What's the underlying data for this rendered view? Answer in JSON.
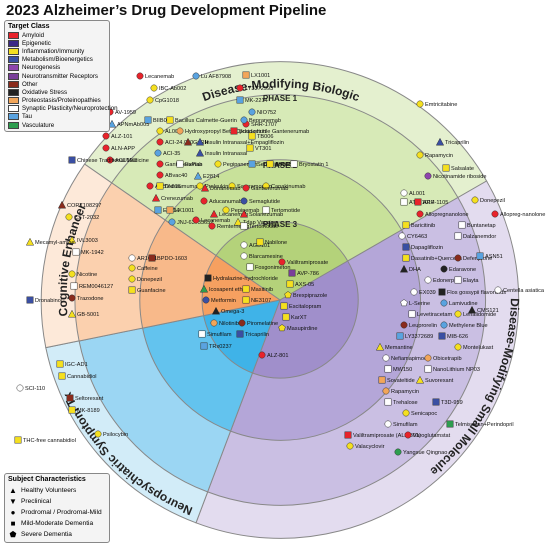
{
  "title": "2023 Alzheimer’s Drug Development Pipeline",
  "legend_target": {
    "title": "Target Class",
    "items": [
      {
        "label": "Amyloid",
        "color": "#e8232b"
      },
      {
        "label": "Epigenetic",
        "color": "#3c2a86"
      },
      {
        "label": "Inflammation/Immunity",
        "color": "#f5e020"
      },
      {
        "label": "Metabolism/Bioenergetics",
        "color": "#3a4fa3"
      },
      {
        "label": "Neurogenesis",
        "color": "#8e44ad"
      },
      {
        "label": "Neurotransmitter Receptors",
        "color": "#7a3f9a"
      },
      {
        "label": "Other",
        "color": "#8a2b1c"
      },
      {
        "label": "Oxidative Stress",
        "color": "#222222"
      },
      {
        "label": "Proteostasis/Proteinopathies",
        "color": "#f2a65a"
      },
      {
        "label": "Synaptic Plasticity/Neuroprotection",
        "color": "#ffffff"
      },
      {
        "label": "Tau",
        "color": "#5aa3e0"
      },
      {
        "label": "Vasculature",
        "color": "#2e9e4f"
      }
    ]
  },
  "legend_subject": {
    "title": "Subject Characteristics",
    "items": [
      {
        "label": "Healthy Volunteers",
        "glyph": "▲"
      },
      {
        "label": "Preclinical",
        "glyph": "▼"
      },
      {
        "label": "Prodromal / Prodromal-Mild",
        "glyph": "●"
      },
      {
        "label": "Mild-Moderate Dementia",
        "glyph": "■"
      },
      {
        "label": "Severe Dementia",
        "glyph": "⬟"
      }
    ]
  },
  "sectors": {
    "dmb": "Disease-Modifying Biologic",
    "dmsm": "Disease-Modifying Small Molecule",
    "neuro": "Neuropsychiatric Symptom Tx",
    "cog": "Cognitive Enhancer"
  },
  "phases": {
    "p1": "PHASE 1",
    "p2": "PHASE 2",
    "p3": "PHASE 3"
  },
  "drugs": [
    {
      "label": "Lecanemab",
      "shape": "circle",
      "color": "#e8232b"
    },
    {
      "label": "Lu AF87908",
      "shape": "circle",
      "color": "#5aa3e0"
    },
    {
      "label": "LX1001",
      "shape": "square",
      "color": "#f2a65a"
    },
    {
      "label": "IBC-Ab002",
      "shape": "circle",
      "color": "#f5e020"
    },
    {
      "label": "LY3372993",
      "shape": "circle",
      "color": "#e8232b"
    },
    {
      "label": "CpG1018",
      "shape": "circle",
      "color": "#f5e020"
    },
    {
      "label": "MK-2214",
      "shape": "square",
      "color": "#5aa3e0"
    },
    {
      "label": "AV-1959",
      "shape": "circle",
      "color": "#e8232b"
    },
    {
      "label": "NIO752",
      "shape": "circle",
      "color": "#5aa3e0"
    },
    {
      "label": "APNmAb005",
      "shape": "triangle",
      "color": "#5aa3e0"
    },
    {
      "label": "SHR-1707",
      "shape": "circle",
      "color": "#e8232b"
    },
    {
      "label": "ALZ-101",
      "shape": "circle",
      "color": "#e8232b"
    },
    {
      "label": "TB006",
      "shape": "square",
      "color": "#f5e020"
    },
    {
      "label": "ALN-APP",
      "shape": "circle",
      "color": "#e8232b"
    },
    {
      "label": "VT301",
      "shape": "square",
      "color": "#f5e020"
    },
    {
      "label": "ACU193",
      "shape": "circle",
      "color": "#e8232b"
    },
    {
      "label": "BIIB080",
      "shape": "square",
      "color": "#5aa3e0"
    },
    {
      "label": "Bacillus Calmette-Guerin",
      "shape": "square",
      "color": "#f5e020"
    },
    {
      "label": "Bepranemab",
      "shape": "circle",
      "color": "#5aa3e0"
    },
    {
      "label": "AL002",
      "shape": "circle",
      "color": "#f5e020"
    },
    {
      "label": "Hydroxypropyl Beta Cyclodextrin",
      "shape": "circle",
      "color": "#f2a65a"
    },
    {
      "label": "Brain-shuttle Gantenerumab",
      "shape": "square",
      "color": "#e8232b"
    },
    {
      "label": "ACI-24.060",
      "shape": "circle",
      "color": "#e8232b"
    },
    {
      "label": "GnRH",
      "shape": "triangle",
      "color": "#8a2b1c"
    },
    {
      "label": "Insulin Intranasal+Empagliflozin",
      "shape": "triangle",
      "color": "#3a4fa3"
    },
    {
      "label": "ACI-35",
      "shape": "circle",
      "color": "#5aa3e0"
    },
    {
      "label": "Insulin Intranasal",
      "shape": "triangle",
      "color": "#3a4fa3"
    },
    {
      "label": "Gantenerumab",
      "shape": "circle",
      "color": "#e8232b"
    },
    {
      "label": "ABvac40",
      "shape": "circle",
      "color": "#e8232b"
    },
    {
      "label": "ExPlas",
      "shape": "square",
      "color": "#ffffff"
    },
    {
      "label": "Pegipanermin",
      "shape": "circle",
      "color": "#f5e020"
    },
    {
      "label": "Semorinemab",
      "shape": "square",
      "color": "#5aa3e0"
    },
    {
      "label": "TB006",
      "shape": "square",
      "color": "#f5e020"
    },
    {
      "label": "Bryostatin 1",
      "shape": "square",
      "color": "#ffffff"
    },
    {
      "label": "ABBV-916",
      "shape": "circle",
      "color": "#e8232b"
    },
    {
      "label": "Daratumumab",
      "shape": "square",
      "color": "#f5e020"
    },
    {
      "label": "Proleukin",
      "shape": "circle",
      "color": "#f5e020"
    },
    {
      "label": "Sargramostim",
      "shape": "circle",
      "color": "#f5e020"
    },
    {
      "label": "Canakinumab",
      "shape": "circle",
      "color": "#f5e020"
    },
    {
      "label": "Crenezumab",
      "shape": "triangle",
      "color": "#e8232b"
    },
    {
      "label": "E2814",
      "shape": "square",
      "color": "#5aa3e0"
    },
    {
      "label": "LX1001",
      "shape": "square",
      "color": "#f2a65a"
    },
    {
      "label": "Pepinemab",
      "shape": "circle",
      "color": "#f5e020"
    },
    {
      "label": "Tertomotide",
      "shape": "square",
      "color": "#ffffff"
    },
    {
      "label": "JNJ-63733657",
      "shape": "circle",
      "color": "#5aa3e0"
    },
    {
      "label": "Lecanemab",
      "shape": "circle",
      "color": "#e8232b"
    },
    {
      "label": "Tdap Vaccine",
      "shape": "triangle",
      "color": "#f5e020"
    },
    {
      "label": "E2814",
      "shape": "triangle",
      "color": "#5aa3e0"
    },
    {
      "label": "Donanemab",
      "shape": "triangle",
      "color": "#e8232b"
    },
    {
      "label": "Gantenerumab",
      "shape": "circle",
      "color": "#e8232b"
    },
    {
      "label": "Aducanumab",
      "shape": "circle",
      "color": "#e8232b"
    },
    {
      "label": "Semaglutide",
      "shape": "circle",
      "color": "#3a4fa3"
    },
    {
      "label": "Lecanemab",
      "shape": "triangle",
      "color": "#e8232b"
    },
    {
      "label": "Solanezumab",
      "shape": "triangle",
      "color": "#e8232b"
    },
    {
      "label": "Remternetug",
      "shape": "circle",
      "color": "#e8232b"
    },
    {
      "label": "Tertomotide",
      "shape": "square",
      "color": "#ffffff"
    },
    {
      "label": "AR1001",
      "shape": "circle",
      "color": "#ffffff"
    },
    {
      "label": "BPDO-1603",
      "shape": "square",
      "color": "#8a2b1c"
    },
    {
      "label": "Caffeine",
      "shape": "circle",
      "color": "#f5e020"
    },
    {
      "label": "Donepezil",
      "shape": "circle",
      "color": "#f5e020"
    },
    {
      "label": "Guanfacine",
      "shape": "square",
      "color": "#f5e020"
    },
    {
      "label": "AGB101",
      "shape": "circle",
      "color": "#ffffff"
    },
    {
      "label": "Blarcamesine",
      "shape": "circle",
      "color": "#ffffff"
    },
    {
      "label": "Fosgonimeton",
      "shape": "square",
      "color": "#ffffff"
    },
    {
      "label": "Hydralazine-hydrochloride",
      "shape": "square",
      "color": "#222222"
    },
    {
      "label": "Icosapent ethyl",
      "shape": "triangle",
      "color": "#2e9e4f"
    },
    {
      "label": "Masitinib",
      "shape": "square",
      "color": "#f5e020"
    },
    {
      "label": "Metformin",
      "shape": "circle",
      "color": "#3a4fa3"
    },
    {
      "label": "NE3107",
      "shape": "square",
      "color": "#f5e020"
    },
    {
      "label": "Omega-3",
      "shape": "triangle",
      "color": "#222222"
    },
    {
      "label": "Nilotinib",
      "shape": "circle",
      "color": "#f2a65a"
    },
    {
      "label": "Piromelatine",
      "shape": "circle",
      "color": "#8a2b1c"
    },
    {
      "label": "Simufilam",
      "shape": "square",
      "color": "#ffffff"
    },
    {
      "label": "Tricaprilin",
      "shape": "square",
      "color": "#3a4fa3"
    },
    {
      "label": "TRx0237",
      "shape": "square",
      "color": "#5aa3e0"
    },
    {
      "label": "Valiltramiprosate",
      "shape": "circle",
      "color": "#e8232b"
    },
    {
      "label": "AVP-786",
      "shape": "square",
      "color": "#7a3f9a"
    },
    {
      "label": "AXS-05",
      "shape": "square",
      "color": "#f5e020"
    },
    {
      "label": "Brexpiprazole",
      "shape": "pentagon",
      "color": "#f5e020"
    },
    {
      "label": "Escitalopram",
      "shape": "square",
      "color": "#f5e020"
    },
    {
      "label": "KarXT",
      "shape": "square",
      "color": "#f5e020"
    },
    {
      "label": "Masupirdine",
      "shape": "pentagon",
      "color": "#f5e020"
    },
    {
      "label": "Nabilone",
      "shape": "square",
      "color": "#f5e020"
    },
    {
      "label": "ALZ-801",
      "shape": "circle",
      "color": "#e8232b"
    },
    {
      "label": "AL001",
      "shape": "circle",
      "color": "#ffffff"
    },
    {
      "label": "ATH-1017",
      "shape": "square",
      "color": "#ffffff"
    },
    {
      "label": "APH-1105",
      "shape": "square",
      "color": "#e8232b"
    },
    {
      "label": "Allopregnanolone",
      "shape": "circle",
      "color": "#e8232b"
    },
    {
      "label": "Baricitinib",
      "shape": "square",
      "color": "#f5e020"
    },
    {
      "label": "Buntanetap",
      "shape": "square",
      "color": "#ffffff"
    },
    {
      "label": "CY6463",
      "shape": "circle",
      "color": "#ffffff"
    },
    {
      "label": "Dalzanemdor",
      "shape": "square",
      "color": "#ffffff"
    },
    {
      "label": "Dapagliflozin",
      "shape": "square",
      "color": "#3a4fa3"
    },
    {
      "label": "Dasatinib+Quercetin",
      "shape": "square",
      "color": "#f5e020"
    },
    {
      "label": "Deferiprone",
      "shape": "circle",
      "color": "#8a2b1c"
    },
    {
      "label": "DHA",
      "shape": "triangle",
      "color": "#222222"
    },
    {
      "label": "Edaravone",
      "shape": "circle",
      "color": "#222222"
    },
    {
      "label": "Edonerpic",
      "shape": "circle",
      "color": "#ffffff"
    },
    {
      "label": "Elayta",
      "shape": "square",
      "color": "#ffffff"
    },
    {
      "label": "EX039",
      "shape": "circle",
      "color": "#ffffff"
    },
    {
      "label": "Flos gossypii flavonoids",
      "shape": "square",
      "color": "#222222"
    },
    {
      "label": "L-Serine",
      "shape": "pentagon",
      "color": "#ffffff"
    },
    {
      "label": "Lamivudine",
      "shape": "circle",
      "color": "#5aa3e0"
    },
    {
      "label": "Levetiracetam",
      "shape": "square",
      "color": "#ffffff"
    },
    {
      "label": "Lenalidomide",
      "shape": "circle",
      "color": "#f5e020"
    },
    {
      "label": "Leuprorelin",
      "shape": "circle",
      "color": "#8a2b1c"
    },
    {
      "label": "Methylene Blue",
      "shape": "circle",
      "color": "#5aa3e0"
    },
    {
      "label": "LY3372689",
      "shape": "square",
      "color": "#5aa3e0"
    },
    {
      "label": "MIB-626",
      "shape": "square",
      "color": "#3a4fa3"
    },
    {
      "label": "Memantine",
      "shape": "triangle",
      "color": "#f5e020"
    },
    {
      "label": "Montelukast",
      "shape": "circle",
      "color": "#f5e020"
    },
    {
      "label": "Nefiamapimod",
      "shape": "circle",
      "color": "#ffffff"
    },
    {
      "label": "Obicetrapib",
      "shape": "circle",
      "color": "#f2a65a"
    },
    {
      "label": "MW150",
      "shape": "square",
      "color": "#ffffff"
    },
    {
      "label": "NanoLithium NP03",
      "shape": "square",
      "color": "#ffffff"
    },
    {
      "label": "Sovateltide",
      "shape": "square",
      "color": "#f2a65a"
    },
    {
      "label": "Suvorexant",
      "shape": "triangle",
      "color": "#f5e020"
    },
    {
      "label": "Rapamycin",
      "shape": "circle",
      "color": "#f2a65a"
    },
    {
      "label": "Trehalose",
      "shape": "square",
      "color": "#ffffff"
    },
    {
      "label": "T3D-959",
      "shape": "square",
      "color": "#3a4fa3"
    },
    {
      "label": "Senicapoc",
      "shape": "circle",
      "color": "#f5e020"
    },
    {
      "label": "Simufilam",
      "shape": "circle",
      "color": "#ffffff"
    },
    {
      "label": "Telmisartan+Perindopril",
      "shape": "square",
      "color": "#2e9e4f"
    },
    {
      "label": "Valiltramiprosate (ALZ-801)",
      "shape": "square",
      "color": "#e8232b"
    },
    {
      "label": "Varoglutamstat",
      "shape": "circle",
      "color": "#e8232b"
    },
    {
      "label": "Valacyclovir",
      "shape": "circle",
      "color": "#f5e020"
    },
    {
      "label": "Yangxue Qingnao",
      "shape": "circle",
      "color": "#2e9e4f"
    },
    {
      "label": "Nicotinamide riboside",
      "shape": "circle",
      "color": "#8e44ad"
    },
    {
      "label": "Rapamycin",
      "shape": "circle",
      "color": "#f5e020"
    },
    {
      "label": "Salsalate",
      "shape": "square",
      "color": "#f5e020"
    },
    {
      "label": "Tricaprilin",
      "shape": "triangle",
      "color": "#3a4fa3"
    },
    {
      "label": "Emtricitabine",
      "shape": "circle",
      "color": "#f5e020"
    },
    {
      "label": "CMS121",
      "shape": "triangle",
      "color": "#222222"
    },
    {
      "label": "Centella asiatica",
      "shape": "circle",
      "color": "#ffffff"
    },
    {
      "label": "ASN51",
      "shape": "square",
      "color": "#5aa3e0"
    },
    {
      "label": "Allopreg-nanolone",
      "shape": "circle",
      "color": "#e8232b"
    },
    {
      "label": "Donepezil",
      "shape": "circle",
      "color": "#f5e020"
    },
    {
      "label": "Chinese Traditional Medicine",
      "shape": "square",
      "color": "#3a4fa3"
    },
    {
      "label": "CORT108297",
      "shape": "triangle",
      "color": "#8a2b1c"
    },
    {
      "label": "CST-2032",
      "shape": "circle",
      "color": "#f5e020"
    },
    {
      "label": "IVL3003",
      "shape": "triangle",
      "color": "#f5e020"
    },
    {
      "label": "MK-1942",
      "shape": "square",
      "color": "#ffffff"
    },
    {
      "label": "Nicotine",
      "shape": "circle",
      "color": "#f5e020"
    },
    {
      "label": "REM0046127",
      "shape": "square",
      "color": "#ffffff"
    },
    {
      "label": "Trazodone",
      "shape": "circle",
      "color": "#8a2b1c"
    },
    {
      "label": "GB-5001",
      "shape": "triangle",
      "color": "#f5e020"
    },
    {
      "label": "Mecamyl-amine",
      "shape": "triangle",
      "color": "#f5e020"
    },
    {
      "label": "Dronabinol",
      "shape": "square",
      "color": "#3a4fa3"
    },
    {
      "label": "IGC-AD1",
      "shape": "square",
      "color": "#f5e020"
    },
    {
      "label": "Cannabidiol",
      "shape": "square",
      "color": "#f5e020"
    },
    {
      "label": "SCI-110",
      "shape": "circle",
      "color": "#ffffff"
    },
    {
      "label": "Seltorexant",
      "shape": "square",
      "color": "#8a2b1c"
    },
    {
      "label": "MK-8189",
      "shape": "square",
      "color": "#f5e020"
    },
    {
      "label": "THC-free cannabidiol",
      "shape": "square",
      "color": "#f5e020"
    },
    {
      "label": "Psilocybin",
      "shape": "circle",
      "color": "#f5e020"
    }
  ]
}
